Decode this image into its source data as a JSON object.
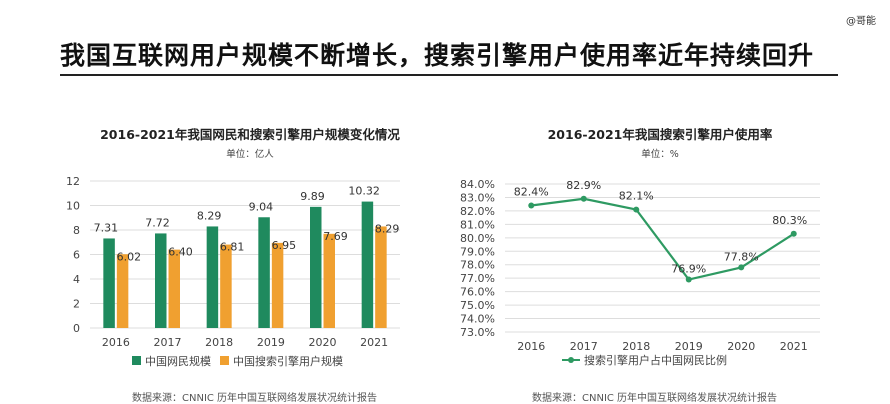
{
  "watermark": "@哥能",
  "page_title": "我国互联网用户规模不断增长，搜索引擎用户使用率近年持续回升",
  "chart_data": [
    {
      "type": "bar",
      "title": "2016-2021年我国网民和搜索引擎用户规模变化情况",
      "unit": "单位：亿人",
      "categories": [
        "2016",
        "2017",
        "2018",
        "2019",
        "2020",
        "2021"
      ],
      "series": [
        {
          "name": "中国网民规模",
          "values": [
            7.31,
            7.72,
            8.29,
            9.04,
            9.89,
            10.32
          ],
          "color": "#1f8a5e"
        },
        {
          "name": "中国搜索引擎用户规模",
          "values": [
            6.02,
            6.4,
            6.81,
            6.95,
            7.69,
            8.29
          ],
          "color": "#f0a030"
        }
      ],
      "ylim": [
        0,
        12
      ],
      "yticks": [
        "0",
        "2",
        "4",
        "6",
        "8",
        "10",
        "12"
      ],
      "grid": true,
      "legend": "bottom",
      "source": "数据来源：CNNIC  历年中国互联网络发展状况统计报告"
    },
    {
      "type": "line",
      "title": "2016-2021年我国搜索引擎用户使用率",
      "unit": "单位：%",
      "categories": [
        "2016",
        "2017",
        "2018",
        "2019",
        "2020",
        "2021"
      ],
      "series": [
        {
          "name": "搜索引擎用户占中国网民比例",
          "values": [
            82.4,
            82.9,
            82.1,
            76.9,
            77.8,
            80.3
          ],
          "color": "#2e9a62"
        }
      ],
      "data_labels": [
        "82.4%",
        "82.9%",
        "82.1%",
        "76.9%",
        "77.8%",
        "80.3%"
      ],
      "ylim": [
        73,
        84
      ],
      "yticks": [
        "73.0%",
        "74.0%",
        "75.0%",
        "76.0%",
        "77.0%",
        "78.0%",
        "79.0%",
        "80.0%",
        "81.0%",
        "82.0%",
        "83.0%",
        "84.0%"
      ],
      "grid": true,
      "legend": "bottom",
      "source": "数据来源：CNNIC  历年中国互联网络发展状况统计报告"
    }
  ]
}
